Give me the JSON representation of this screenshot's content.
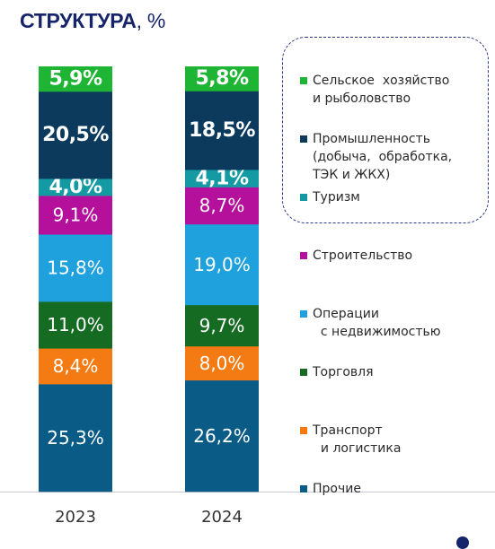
{
  "title": {
    "main": "СТРУКТУРА",
    "unit": ", %"
  },
  "chart_data": {
    "type": "bar",
    "stacked": true,
    "categories": [
      "2023",
      "2024"
    ],
    "series": [
      {
        "name": "Прочие",
        "color": "#0b5b87",
        "values": [
          25.3,
          26.2
        ],
        "labels": [
          "25,3%",
          "26,2%"
        ],
        "label_weight": "normal"
      },
      {
        "name": "Транспорт и логистика",
        "color": "#f47b13",
        "values": [
          8.4,
          8.0
        ],
        "labels": [
          "8,4%",
          "8,0%"
        ],
        "label_weight": "normal"
      },
      {
        "name": "Торговля",
        "color": "#166b23",
        "values": [
          11.0,
          9.7
        ],
        "labels": [
          "11,0%",
          "9,7%"
        ],
        "label_weight": "normal"
      },
      {
        "name": "Операции с недвижимостью",
        "color": "#1ea1dc",
        "values": [
          15.8,
          19.0
        ],
        "labels": [
          "15,8%",
          "19,0%"
        ],
        "label_weight": "normal"
      },
      {
        "name": "Строительство",
        "color": "#b4109c",
        "values": [
          9.1,
          8.7
        ],
        "labels": [
          "9,1%",
          "8,7%"
        ],
        "label_weight": "normal"
      },
      {
        "name": "Туризм",
        "color": "#149aa3",
        "values": [
          4.0,
          4.1
        ],
        "labels": [
          "4,0%",
          "4,1%"
        ],
        "label_weight": "bold"
      },
      {
        "name": "Промышленность (добыча, обработка, ТЭК и ЖКХ)",
        "color": "#0b3a5c",
        "values": [
          20.5,
          18.5
        ],
        "labels": [
          "20,5%",
          "18,5%"
        ],
        "label_weight": "bold"
      },
      {
        "name": "Сельское хозяйство и рыболовство",
        "color": "#1fb534",
        "values": [
          5.9,
          5.8
        ],
        "labels": [
          "5,9%",
          "5,8%"
        ],
        "label_weight": "bold"
      }
    ],
    "legend": [
      {
        "label": "Сельское  хозяйство\nи рыболовство",
        "color": "#1fb534"
      },
      {
        "label": "Промышленность\n(добыча,  обработка,\nТЭК и ЖКХ)",
        "color": "#0b3a5c"
      },
      {
        "label": "Туризм",
        "color": "#149aa3"
      },
      {
        "label": "Строительство",
        "color": "#b4109c"
      },
      {
        "label": "Операции\n  с недвижимостью",
        "color": "#1ea1dc"
      },
      {
        "label": "Торговля",
        "color": "#166b23"
      },
      {
        "label": "Транспорт\n  и логистика",
        "color": "#f47b13"
      },
      {
        "label": "Прочие",
        "color": "#0b5b87"
      }
    ],
    "legend_placement": "right",
    "grid": false
  }
}
